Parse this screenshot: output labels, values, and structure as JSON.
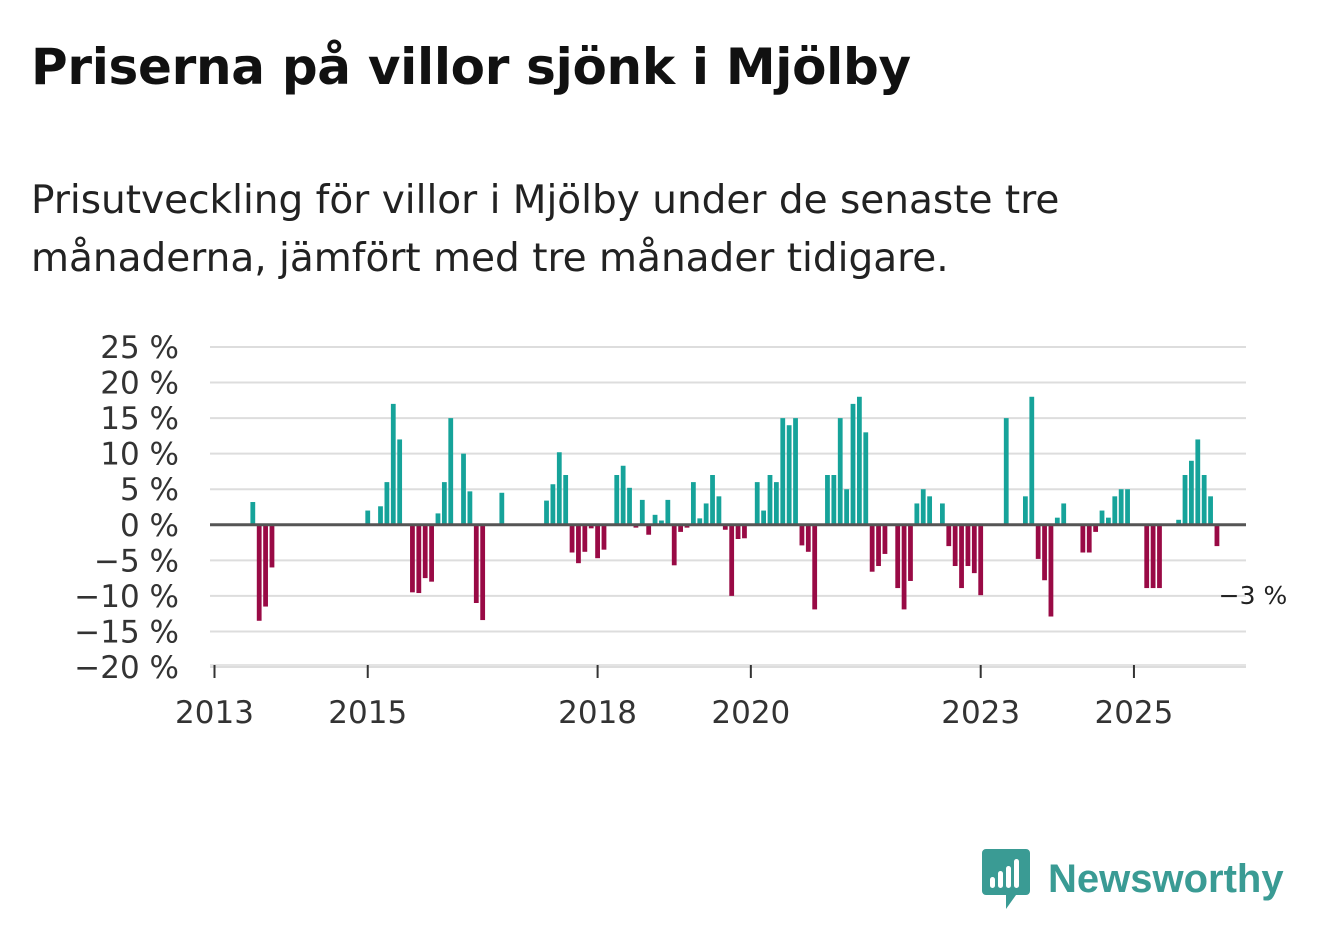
{
  "title": "Priserna på villor sjönk i Mjölby",
  "subtitle": "Prisutveckling för villor i Mjölby under de senaste tre månaderna, jämfört med tre månader tidigare.",
  "brand": {
    "name": "Newsworthy",
    "color": "#3a9b94"
  },
  "colors": {
    "positive": "#16a39a",
    "negative": "#990a45",
    "grid": "#dddddd",
    "zero_line": "#555555"
  },
  "chart_data": {
    "type": "bar",
    "title": "Priserna på villor sjönk i Mjölby",
    "xlabel": "",
    "ylabel": "",
    "ylim": [
      -20,
      25
    ],
    "yticks": [
      25,
      20,
      15,
      10,
      5,
      0,
      -5,
      -10,
      -15,
      -20
    ],
    "ytick_labels": [
      "25 %",
      "20 %",
      "15 %",
      "10 %",
      "5 %",
      "0 %",
      "−5 %",
      "−10 %",
      "−15 %",
      "−20 %"
    ],
    "xticks": [
      {
        "label": "2013",
        "pos": 0
      },
      {
        "label": "2015",
        "pos": 24
      },
      {
        "label": "2018",
        "pos": 60
      },
      {
        "label": "2020",
        "pos": 84
      },
      {
        "label": "2023",
        "pos": 120
      },
      {
        "label": "2025",
        "pos": 144
      }
    ],
    "start": "2013-01",
    "frequency": "monthly",
    "values": [
      null,
      null,
      null,
      null,
      null,
      null,
      3.2,
      -13.5,
      -11.5,
      -6,
      null,
      null,
      null,
      null,
      null,
      null,
      null,
      null,
      null,
      null,
      null,
      null,
      null,
      null,
      2,
      null,
      2.6,
      6,
      17,
      12,
      null,
      -9.5,
      -9.6,
      -7.5,
      -8,
      1.6,
      6,
      15,
      null,
      10,
      4.7,
      -11,
      -13.4,
      null,
      null,
      4.5,
      null,
      null,
      null,
      null,
      null,
      null,
      3.4,
      5.7,
      10.2,
      7,
      -3.9,
      -5.4,
      -3.8,
      -0.5,
      -4.7,
      -3.5,
      null,
      7,
      8.3,
      5.2,
      -0.4,
      3.5,
      -1.4,
      1.4,
      0.6,
      3.5,
      -5.7,
      -1,
      -0.4,
      6,
      0.9,
      3,
      7,
      4,
      -0.7,
      -10,
      -2,
      -1.9,
      null,
      6,
      2,
      7,
      6,
      15,
      14,
      15,
      -2.9,
      -3.8,
      -11.9,
      null,
      7,
      7,
      15,
      5,
      17,
      18,
      13,
      -6.6,
      -5.8,
      -4.1,
      null,
      -8.9,
      -11.9,
      -7.9,
      3,
      5,
      4,
      null,
      3,
      -3,
      -5.8,
      -8.9,
      -5.8,
      -6.8,
      -9.9,
      null,
      null,
      null,
      15,
      null,
      null,
      4,
      18,
      -4.8,
      -7.8,
      -12.9,
      1,
      3,
      null,
      null,
      -3.9,
      -3.9,
      -1,
      2,
      1,
      4,
      5,
      5,
      null,
      null,
      -8.9,
      -8.9,
      -8.9,
      null,
      null,
      0.7,
      7,
      9,
      12,
      7,
      4,
      -3
    ],
    "annotation": {
      "label": "−3 %",
      "value": -3
    }
  }
}
